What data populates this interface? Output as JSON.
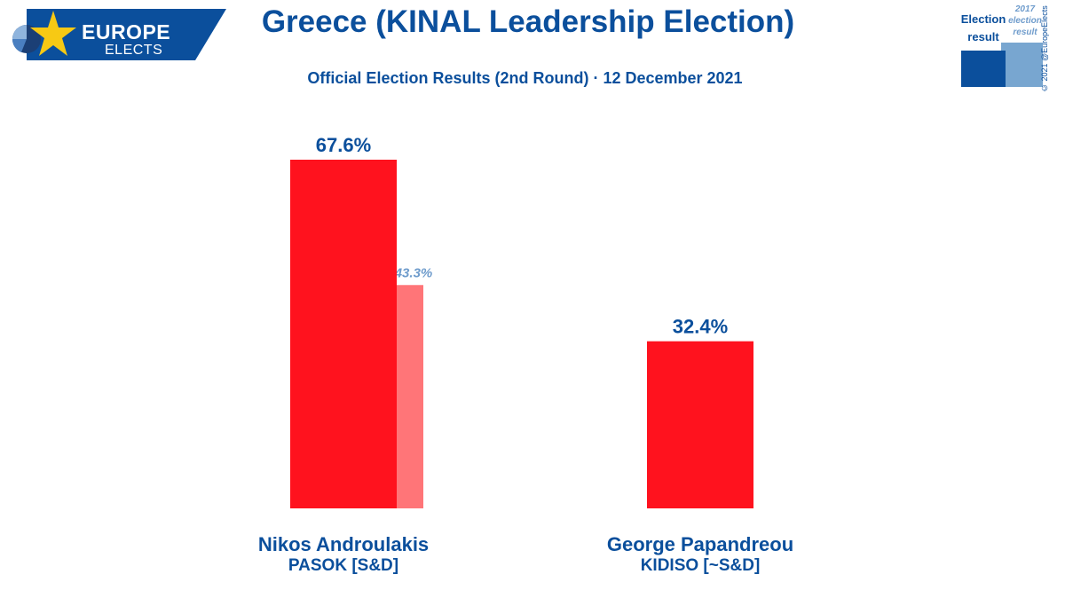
{
  "logo": {
    "line1": "EUROPE",
    "line2": "ELECTS",
    "colors": {
      "band": "#0b4f9c",
      "star": "#f7c914"
    }
  },
  "header": {
    "title": "Greece (KINAL Leadership Election)",
    "subtitle": "Official Election Results (2nd Round) · 12 December 2021"
  },
  "legend": {
    "current_label_1": "Election",
    "current_label_2": "result",
    "previous_label_1": "2017",
    "previous_label_2": "election",
    "previous_label_3": "result",
    "copyright": "© 2021 @EuropeElects"
  },
  "colors": {
    "accent": "#0b4f9c",
    "bar_current": "#ff121e",
    "bar_previous": "#ff7578",
    "previous_label": "#6f9ccc"
  },
  "chart_data": {
    "type": "bar",
    "categories": [
      {
        "name": "Nikos Androulakis",
        "party": "PASOK [S&D]"
      },
      {
        "name": "George Papandreou",
        "party": "KIDISO [~S&D]"
      }
    ],
    "series": [
      {
        "name": "Election result",
        "values": [
          67.6,
          32.4
        ],
        "labels": [
          "67.6%",
          "32.4%"
        ]
      },
      {
        "name": "2017 election result",
        "values": [
          43.3,
          null
        ],
        "labels": [
          "43.3%",
          ""
        ]
      }
    ],
    "ylim": [
      0,
      67.6
    ],
    "grid": false,
    "legend_position": "top-right"
  }
}
